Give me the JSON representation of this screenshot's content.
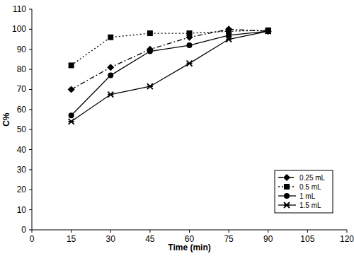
{
  "chart_data": {
    "type": "line",
    "x_label": "Time (min)",
    "y_label": "C%",
    "x": [
      15,
      30,
      45,
      60,
      75,
      90
    ],
    "series": [
      {
        "name": "0.25 mL",
        "color": "#000000",
        "marker": "diamond",
        "line_style": "dashdot",
        "values": [
          70,
          81,
          90,
          96,
          100,
          99
        ]
      },
      {
        "name": "0.5 mL",
        "color": "#000000",
        "marker": "square",
        "line_style": "dotted",
        "values": [
          82,
          96,
          98,
          98,
          99,
          99.5
        ]
      },
      {
        "name": "1 mL",
        "color": "#000000",
        "marker": "circle",
        "line_style": "solid",
        "values": [
          57,
          77,
          89,
          92,
          97,
          99
        ]
      },
      {
        "name": "1.5 mL",
        "color": "#000000",
        "marker": "star",
        "line_style": "solid",
        "values": [
          54,
          67.5,
          71.5,
          83,
          95,
          99
        ]
      }
    ],
    "xlim": [
      0,
      120
    ],
    "xticks": [
      0,
      15,
      30,
      45,
      60,
      75,
      90,
      105,
      120
    ],
    "ylim": [
      0,
      110
    ],
    "yticks": [
      0,
      10,
      20,
      30,
      40,
      50,
      60,
      70,
      80,
      90,
      100,
      110
    ],
    "grid": false,
    "legend": "right"
  }
}
